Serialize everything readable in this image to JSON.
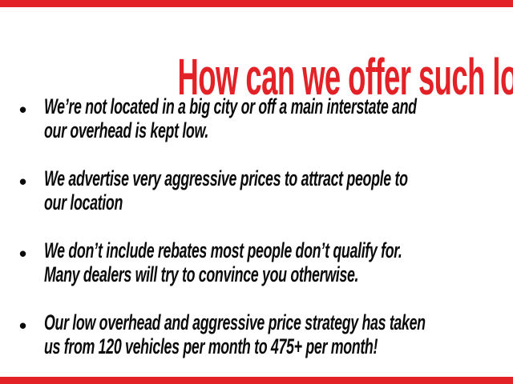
{
  "slide": {
    "title": "How can we offer such low prices?",
    "accent_color": "#e32227",
    "text_color": "#0b0b0b",
    "bullet_glyph": "•",
    "bullets": [
      {
        "line1": "We’re not located in a big city or off a main interstate and",
        "line2": "our overhead is kept low."
      },
      {
        "line1": "We advertise very aggressive prices to attract people to",
        "line2": "our location"
      },
      {
        "line1": "We don’t include rebates most people don’t qualify for.",
        "line2": "Many dealers will try to convince you otherwise."
      },
      {
        "line1": "Our low overhead and aggressive price strategy has taken",
        "line2": "us from 120 vehicles per month to 475+ per month!"
      }
    ]
  }
}
